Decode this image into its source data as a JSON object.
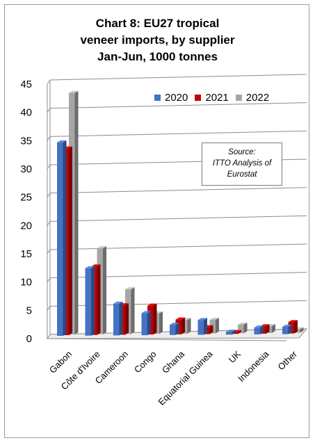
{
  "chart_data": {
    "type": "bar",
    "title_lines": [
      "Chart 8: EU27 tropical",
      "veneer imports, by supplier",
      "Jan-Jun, 1000 tonnes"
    ],
    "categories": [
      "Gabon",
      "Côte d'Ivoire",
      "Cameroon",
      "Congo",
      "Ghana",
      "Equatorial Guinea",
      "UK",
      "Indonesia",
      "Other"
    ],
    "series": [
      {
        "name": "2020",
        "color": "#4472c4",
        "values": [
          34.2,
          11.9,
          5.6,
          3.9,
          1.8,
          2.6,
          0.5,
          1.2,
          1.3
        ]
      },
      {
        "name": "2021",
        "color": "#c00000",
        "values": [
          33.0,
          12.1,
          5.2,
          5.1,
          2.6,
          1.2,
          0.3,
          1.3,
          2.0
        ]
      },
      {
        "name": "2022",
        "color": "#a6a6a6",
        "values": [
          42.7,
          15.2,
          7.9,
          3.6,
          2.4,
          2.4,
          1.5,
          1.2,
          0.6
        ]
      }
    ],
    "yticks": [
      "0",
      "5",
      "10",
      "15",
      "20",
      "25",
      "30",
      "35",
      "40",
      "45"
    ],
    "ylim": [
      0,
      45
    ],
    "grid": true,
    "legend_position": "top-right",
    "annotation_lines": [
      "Source:",
      "ITTO Analysis of",
      "Eurostat"
    ]
  }
}
